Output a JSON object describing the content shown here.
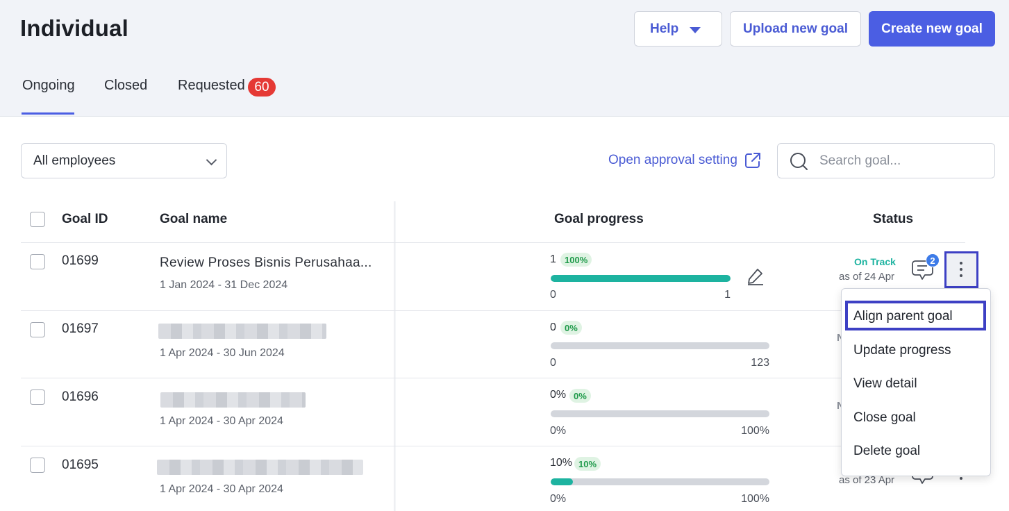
{
  "page": {
    "title": "Individual"
  },
  "header": {
    "help_label": "Help",
    "upload_label": "Upload new goal",
    "create_label": "Create new goal"
  },
  "tabs": [
    {
      "label": "Ongoing",
      "active": true
    },
    {
      "label": "Closed"
    },
    {
      "label": "Requested",
      "badge": "60"
    }
  ],
  "filters": {
    "employee_select": "All employees",
    "approval_link": "Open approval setting",
    "search_placeholder": "Search goal..."
  },
  "table": {
    "columns": {
      "goal_id": "Goal ID",
      "goal_name": "Goal name",
      "goal_progress": "Goal progress",
      "status": "Status"
    },
    "rows": [
      {
        "id": "01699",
        "name": "Review Proses Bisnis Perusahaa...",
        "dates": "1 Jan 2024 - 31 Dec 2024",
        "current": "1",
        "percent": "100%",
        "fraction": 1.0,
        "min": "0",
        "max": "1",
        "status": "On Track",
        "as_of": "as of 24 Apr",
        "comments": "2"
      },
      {
        "id": "01697",
        "name": "",
        "dates": "1 Apr 2024 - 30 Jun 2024",
        "current": "0",
        "percent": "0%",
        "fraction": 0.0,
        "min": "0",
        "max": "123"
      },
      {
        "id": "01696",
        "name": "",
        "dates": "1 Apr 2024 - 30 Apr 2024",
        "current": "0%",
        "percent": "0%",
        "fraction": 0.0,
        "min": "0%",
        "max": "100%"
      },
      {
        "id": "01695",
        "name": "",
        "dates": "1 Apr 2024 - 30 Apr 2024",
        "current": "10%",
        "percent": "10%",
        "fraction": 0.1,
        "min": "0%",
        "max": "100%",
        "as_of": "as of 23 Apr"
      }
    ]
  },
  "context_menu": {
    "items": [
      "Align parent goal",
      "Update progress",
      "View detail",
      "Close goal",
      "Delete goal"
    ]
  },
  "colors": {
    "accent": "#4b5ee3",
    "on_track": "#1db3a0",
    "badge_red": "#e53935",
    "highlight": "#3d40c4"
  }
}
